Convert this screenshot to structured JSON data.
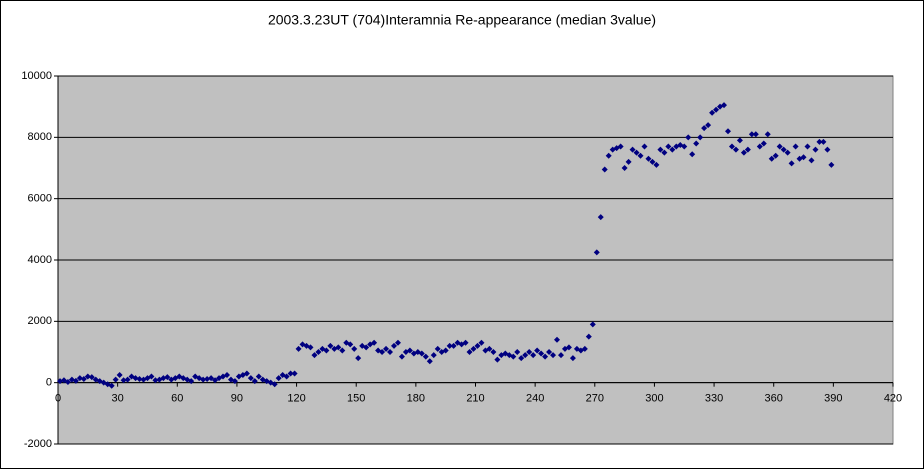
{
  "chart_data": {
    "type": "scatter",
    "title": "2003.3.23UT (704)Interamnia Re-appearance (median 3value)",
    "color": "#000080",
    "plot_background": "#c0c0c0",
    "grid": true,
    "xlim": [
      0,
      420
    ],
    "xticks": [
      0,
      30,
      60,
      90,
      120,
      150,
      180,
      210,
      240,
      270,
      300,
      330,
      360,
      390,
      420
    ],
    "ylim": [
      -2000,
      10000
    ],
    "yticks": [
      -2000,
      0,
      2000,
      4000,
      6000,
      8000,
      10000
    ],
    "x": [
      1,
      3,
      5,
      7,
      9,
      11,
      13,
      15,
      17,
      19,
      21,
      23,
      25,
      27,
      29,
      31,
      33,
      35,
      37,
      39,
      41,
      43,
      45,
      47,
      49,
      51,
      53,
      55,
      57,
      59,
      61,
      63,
      65,
      67,
      69,
      71,
      73,
      75,
      77,
      79,
      81,
      83,
      85,
      87,
      89,
      91,
      93,
      95,
      97,
      99,
      101,
      103,
      105,
      107,
      109,
      111,
      113,
      115,
      117,
      119,
      121,
      123,
      125,
      127,
      129,
      131,
      133,
      135,
      137,
      139,
      141,
      143,
      145,
      147,
      149,
      151,
      153,
      155,
      157,
      159,
      161,
      163,
      165,
      167,
      169,
      171,
      173,
      175,
      177,
      179,
      181,
      183,
      185,
      187,
      189,
      191,
      193,
      195,
      197,
      199,
      201,
      203,
      205,
      207,
      209,
      211,
      213,
      215,
      217,
      219,
      221,
      223,
      225,
      227,
      229,
      231,
      233,
      235,
      237,
      239,
      241,
      243,
      245,
      247,
      249,
      251,
      253,
      255,
      257,
      259,
      261,
      263,
      265,
      267,
      269,
      271,
      273,
      275,
      277,
      279,
      281,
      283,
      285,
      287,
      289,
      291,
      293,
      295,
      297,
      299,
      301,
      303,
      305,
      307,
      309,
      311,
      313,
      315,
      317,
      319,
      321,
      323,
      325,
      327,
      329,
      331,
      333,
      335,
      337,
      339,
      341,
      343,
      345,
      347,
      349,
      351,
      353,
      355,
      357,
      359,
      361,
      363,
      365,
      367,
      369,
      371,
      373,
      375,
      377,
      379,
      381,
      383,
      385,
      387,
      389
    ],
    "values": [
      50,
      80,
      20,
      100,
      60,
      150,
      120,
      200,
      180,
      100,
      50,
      0,
      -50,
      -100,
      100,
      250,
      80,
      100,
      200,
      150,
      120,
      100,
      150,
      200,
      80,
      100,
      150,
      180,
      100,
      150,
      200,
      150,
      100,
      50,
      200,
      150,
      100,
      120,
      150,
      80,
      150,
      200,
      250,
      100,
      50,
      200,
      250,
      300,
      150,
      50,
      200,
      100,
      50,
      0,
      -50,
      150,
      250,
      200,
      300,
      300,
      1100,
      1250,
      1200,
      1150,
      900,
      1000,
      1100,
      1050,
      1200,
      1100,
      1150,
      1050,
      1300,
      1250,
      1100,
      800,
      1200,
      1150,
      1250,
      1300,
      1050,
      1000,
      1100,
      1000,
      1200,
      1300,
      850,
      1000,
      1050,
      950,
      1000,
      950,
      850,
      700,
      900,
      1100,
      1000,
      1050,
      1200,
      1200,
      1300,
      1250,
      1300,
      1000,
      1100,
      1200,
      1300,
      1050,
      1100,
      1000,
      750,
      900,
      950,
      900,
      850,
      1000,
      800,
      900,
      1000,
      900,
      1050,
      950,
      850,
      1000,
      900,
      1400,
      900,
      1100,
      1150,
      800,
      1100,
      1050,
      1100,
      1500,
      1900,
      4250,
      5400,
      6950,
      7400,
      7600,
      7650,
      7700,
      7000,
      7200,
      7600,
      7500,
      7400,
      7700,
      7300,
      7200,
      7100,
      7600,
      7500,
      7700,
      7600,
      7700,
      7750,
      7700,
      8000,
      7450,
      7800,
      8000,
      8300,
      8400,
      8800,
      8900,
      9000,
      9050,
      8200,
      7700,
      7600,
      7900,
      7500,
      7600,
      8100,
      8100,
      7700,
      7800,
      8100,
      7300,
      7400,
      7700,
      7600,
      7500,
      7150,
      7700,
      7300,
      7350,
      7700,
      7250,
      7600,
      7850,
      7850,
      7600,
      7100
    ]
  }
}
